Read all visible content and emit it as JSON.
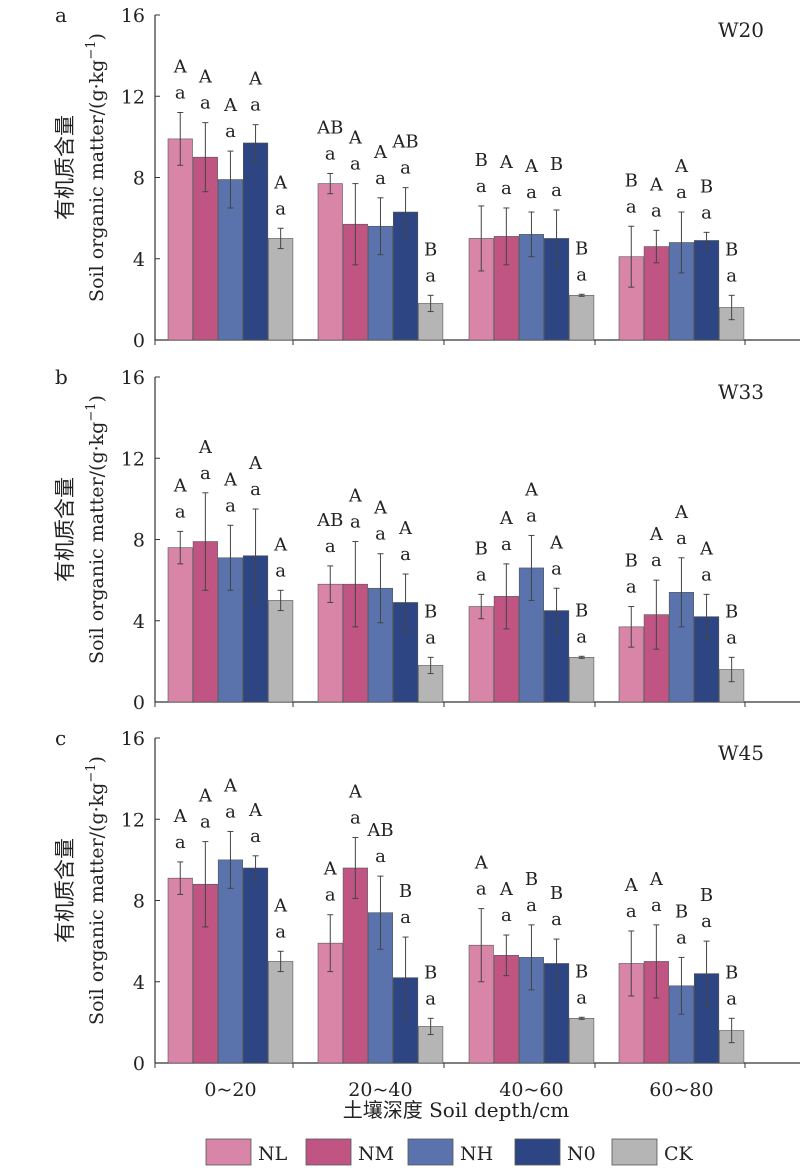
{
  "figure": {
    "ylabel_cn": "有机质含量",
    "ylabel_en": "Soil organic matter/(g·kg",
    "ylabel_sup": "−1",
    "ylabel_close": ")",
    "xlabel": "土壤深度 Soil depth/cm"
  },
  "legend": [
    {
      "name": "NL",
      "color": "#d885a8"
    },
    {
      "name": "NM",
      "color": "#c05584"
    },
    {
      "name": "NH",
      "color": "#5a73ad"
    },
    {
      "name": "N0",
      "color": "#2d4583"
    },
    {
      "name": "CK",
      "color": "#b5b5b5"
    }
  ],
  "chart_data": [
    {
      "type": "bar",
      "panel_label": "a",
      "site": "W20",
      "categories": [
        "0~20",
        "20~40",
        "40~60",
        "60~80"
      ],
      "ylim": [
        0,
        16
      ],
      "yticks": [
        0,
        4,
        8,
        12,
        16
      ],
      "series": [
        {
          "name": "NL",
          "values": [
            9.9,
            7.7,
            5.0,
            4.1
          ],
          "errors": [
            1.3,
            0.5,
            1.6,
            1.5
          ],
          "upper": [
            "A",
            "AB",
            "B",
            "B"
          ],
          "lower": [
            "a",
            "a",
            "a",
            "a"
          ]
        },
        {
          "name": "NM",
          "values": [
            9.0,
            5.7,
            5.1,
            4.6
          ],
          "errors": [
            1.7,
            2.0,
            1.4,
            0.8
          ],
          "upper": [
            "A",
            "A",
            "A",
            "A"
          ],
          "lower": [
            "a",
            "a",
            "a",
            "a"
          ]
        },
        {
          "name": "NH",
          "values": [
            7.9,
            5.6,
            5.2,
            4.8
          ],
          "errors": [
            1.4,
            1.4,
            1.1,
            1.5
          ],
          "upper": [
            "A",
            "A",
            "A",
            "A"
          ],
          "lower": [
            "a",
            "a",
            "a",
            "a"
          ]
        },
        {
          "name": "N0",
          "values": [
            9.7,
            6.3,
            5.0,
            4.9
          ],
          "errors": [
            0.9,
            1.2,
            1.4,
            0.4
          ],
          "upper": [
            "A",
            "AB",
            "B",
            "B"
          ],
          "lower": [
            "a",
            "a",
            "a",
            "a"
          ]
        },
        {
          "name": "CK",
          "values": [
            5.0,
            1.8,
            2.2,
            1.6
          ],
          "errors": [
            0.5,
            0.4,
            0.05,
            0.6
          ],
          "upper": [
            "A",
            "B",
            "B",
            "B"
          ],
          "lower": [
            "a",
            "a",
            "a",
            "a"
          ]
        }
      ]
    },
    {
      "type": "bar",
      "panel_label": "b",
      "site": "W33",
      "categories": [
        "0~20",
        "20~40",
        "40~60",
        "60~80"
      ],
      "ylim": [
        0,
        16
      ],
      "yticks": [
        0,
        4,
        8,
        12,
        16
      ],
      "series": [
        {
          "name": "NL",
          "values": [
            7.6,
            5.8,
            4.7,
            3.7
          ],
          "errors": [
            0.8,
            0.9,
            0.6,
            1.0
          ],
          "upper": [
            "A",
            "AB",
            "B",
            "B"
          ],
          "lower": [
            "a",
            "a",
            "a",
            "a"
          ]
        },
        {
          "name": "NM",
          "values": [
            7.9,
            5.8,
            5.2,
            4.3
          ],
          "errors": [
            2.4,
            2.1,
            1.6,
            1.7
          ],
          "upper": [
            "A",
            "A",
            "A",
            "A"
          ],
          "lower": [
            "a",
            "a",
            "a",
            "a"
          ]
        },
        {
          "name": "NH",
          "values": [
            7.1,
            5.6,
            6.6,
            5.4
          ],
          "errors": [
            1.6,
            1.7,
            1.6,
            1.7
          ],
          "upper": [
            "A",
            "A",
            "A",
            "A"
          ],
          "lower": [
            "a",
            "a",
            "a",
            "a"
          ]
        },
        {
          "name": "N0",
          "values": [
            7.2,
            4.9,
            4.5,
            4.2
          ],
          "errors": [
            2.3,
            1.4,
            1.1,
            1.1
          ],
          "upper": [
            "A",
            "A",
            "A",
            "A"
          ],
          "lower": [
            "a",
            "a",
            "a",
            "a"
          ]
        },
        {
          "name": "CK",
          "values": [
            5.0,
            1.8,
            2.2,
            1.6
          ],
          "errors": [
            0.5,
            0.4,
            0.05,
            0.6
          ],
          "upper": [
            "A",
            "B",
            "B",
            "B"
          ],
          "lower": [
            "a",
            "a",
            "a",
            "a"
          ]
        }
      ]
    },
    {
      "type": "bar",
      "panel_label": "c",
      "site": "W45",
      "categories": [
        "0~20",
        "20~40",
        "40~60",
        "60~80"
      ],
      "ylim": [
        0,
        16
      ],
      "yticks": [
        0,
        4,
        8,
        12,
        16
      ],
      "series": [
        {
          "name": "NL",
          "values": [
            9.1,
            5.9,
            5.8,
            4.9
          ],
          "errors": [
            0.8,
            1.4,
            1.8,
            1.6
          ],
          "upper": [
            "A",
            "A",
            "A",
            "A"
          ],
          "lower": [
            "a",
            "a",
            "a",
            "a"
          ]
        },
        {
          "name": "NM",
          "values": [
            8.8,
            9.6,
            5.3,
            5.0
          ],
          "errors": [
            2.1,
            1.5,
            1.0,
            1.8
          ],
          "upper": [
            "A",
            "A",
            "A",
            "A"
          ],
          "lower": [
            "a",
            "a",
            "a",
            "a"
          ]
        },
        {
          "name": "NH",
          "values": [
            10.0,
            7.4,
            5.2,
            3.8
          ],
          "errors": [
            1.4,
            1.8,
            1.6,
            1.4
          ],
          "upper": [
            "A",
            "AB",
            "B",
            "B"
          ],
          "lower": [
            "a",
            "a",
            "a",
            "a"
          ]
        },
        {
          "name": "N0",
          "values": [
            9.6,
            4.2,
            4.9,
            4.4
          ],
          "errors": [
            0.6,
            2.0,
            1.2,
            1.6
          ],
          "upper": [
            "A",
            "B",
            "B",
            "B"
          ],
          "lower": [
            "a",
            "a",
            "a",
            "a"
          ]
        },
        {
          "name": "CK",
          "values": [
            5.0,
            1.8,
            2.2,
            1.6
          ],
          "errors": [
            0.5,
            0.4,
            0.05,
            0.6
          ],
          "upper": [
            "A",
            "B",
            "B",
            "B"
          ],
          "lower": [
            "a",
            "a",
            "a",
            "a"
          ]
        }
      ]
    }
  ]
}
